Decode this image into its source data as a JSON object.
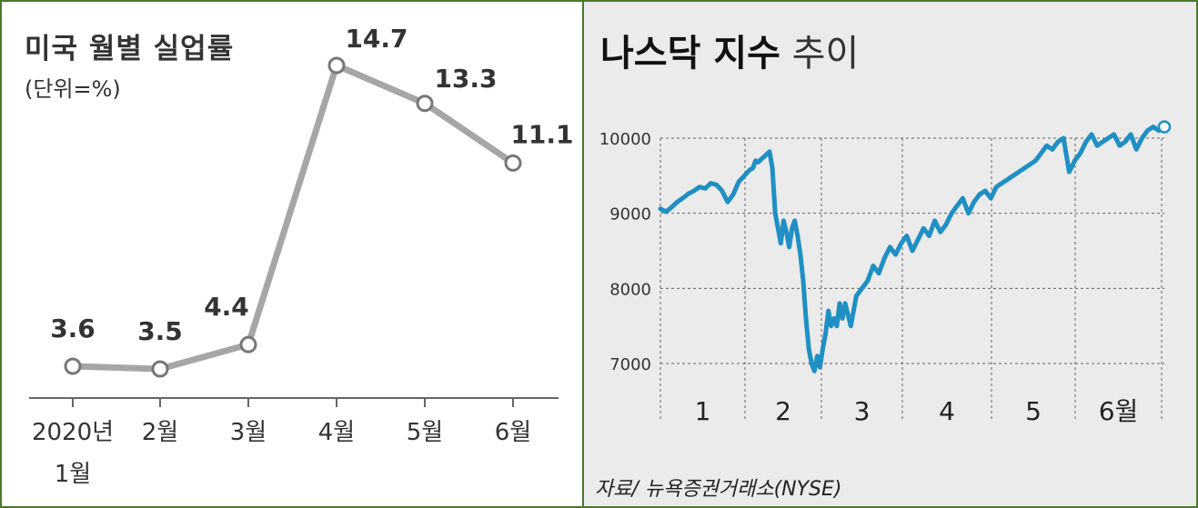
{
  "left_chart": {
    "title": "미국 월별 실업률",
    "unit": "(단위=%)"
  },
  "right_chart": {
    "title_bold": "나스닥 지수",
    "title_light": "추이",
    "source": "자료/ 뉴욕증권거래소(NYSE)"
  },
  "chart_data": [
    {
      "type": "line",
      "title": "미국 월별 실업률",
      "subtitle": "(단위=%)",
      "categories": [
        "2020년 1월",
        "2월",
        "3월",
        "4월",
        "5월",
        "6월"
      ],
      "category_lines": [
        [
          "2020년",
          "1월"
        ],
        [
          "2월"
        ],
        [
          "3월"
        ],
        [
          "4월"
        ],
        [
          "5월"
        ],
        [
          "6월"
        ]
      ],
      "values": [
        3.6,
        3.5,
        4.4,
        14.7,
        13.3,
        11.1
      ],
      "value_labels": [
        "3.6",
        "3.5",
        "4.4",
        "14.7",
        "13.3",
        "11.1"
      ],
      "ylim": [
        0,
        16
      ],
      "line_color": "#a6a6a6",
      "grid": false
    },
    {
      "type": "line",
      "title": "나스닥 지수 추이",
      "source": "자료/ 뉴욕증권거래소(NYSE)",
      "x_tick_labels": [
        "1",
        "2",
        "3",
        "4",
        "5",
        "6월"
      ],
      "y_ticks": [
        7000,
        8000,
        9000,
        10000
      ],
      "ylim": [
        6500,
        10700
      ],
      "grid": "horizontal dashed",
      "line_color": "#1f8fc4",
      "series": [
        {
          "x": [
            0,
            2,
            4,
            6,
            8,
            10,
            12,
            14,
            16,
            18,
            20,
            22,
            24,
            26,
            28,
            30,
            32,
            33,
            34,
            35,
            36,
            37,
            38,
            39,
            40,
            41,
            42,
            43,
            44,
            45,
            46,
            47,
            48,
            49,
            50,
            51,
            52,
            53,
            54,
            55,
            56,
            57,
            58,
            59,
            60,
            61,
            62,
            63,
            64,
            65,
            66,
            68,
            70,
            72,
            74,
            76,
            78,
            80,
            82,
            84,
            86,
            88,
            90,
            92,
            94,
            96,
            98,
            100,
            102,
            104,
            106,
            108,
            110,
            112,
            114,
            116,
            118,
            120,
            122,
            124,
            126,
            128,
            130,
            132,
            134,
            136,
            138,
            140,
            142,
            144,
            146,
            148,
            150,
            152,
            154,
            156,
            158,
            160,
            162,
            164,
            166,
            168,
            170,
            172,
            174,
            176,
            178,
            180
          ],
          "values": [
            9060,
            9020,
            9080,
            9150,
            9200,
            9260,
            9300,
            9350,
            9330,
            9400,
            9380,
            9300,
            9150,
            9250,
            9420,
            9500,
            9580,
            9600,
            9700,
            9680,
            9720,
            9750,
            9790,
            9820,
            9600,
            9000,
            8800,
            8600,
            8900,
            8750,
            8550,
            8800,
            8900,
            8700,
            8450,
            8100,
            7600,
            7200,
            7000,
            6900,
            7100,
            6950,
            7200,
            7400,
            7700,
            7500,
            7600,
            7500,
            7800,
            7600,
            7800,
            7500,
            7900,
            8000,
            8100,
            8300,
            8200,
            8400,
            8550,
            8450,
            8600,
            8700,
            8500,
            8650,
            8800,
            8700,
            8900,
            8750,
            8850,
            9000,
            9100,
            9200,
            9000,
            9150,
            9250,
            9300,
            9200,
            9350,
            9400,
            9450,
            9500,
            9550,
            9600,
            9650,
            9700,
            9800,
            9900,
            9850,
            9950,
            10000,
            9550,
            9700,
            9800,
            9950,
            10050,
            9900,
            9950,
            10000,
            10050,
            9900,
            9950,
            10050,
            9850,
            10000,
            10100,
            10150,
            10100,
            10150
          ]
        }
      ]
    }
  ]
}
